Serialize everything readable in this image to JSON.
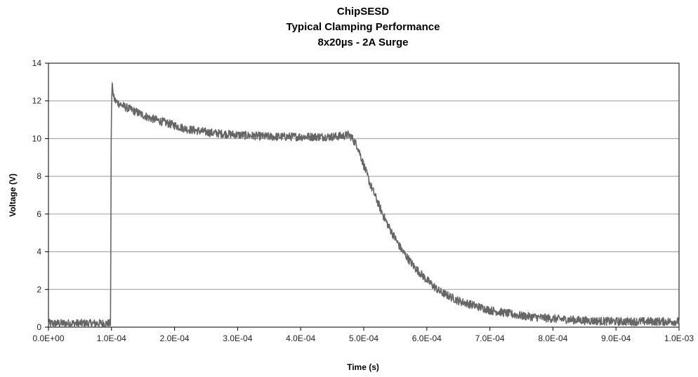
{
  "chart_data": {
    "type": "line",
    "title": [
      "ChipSESD",
      "Typical Clamping Performance",
      "8x20µs - 2A Surge"
    ],
    "xlabel": "Time (s)",
    "ylabel": "Voltage (V)",
    "xlim": [
      0,
      0.001
    ],
    "ylim": [
      0,
      14
    ],
    "x_ticks": [
      0,
      0.0001,
      0.0002,
      0.0003,
      0.0004,
      0.0005,
      0.0006,
      0.0007,
      0.0008,
      0.0009,
      0.001
    ],
    "x_tick_labels": [
      "0.0E+00",
      "1.0E-04",
      "2.0E-04",
      "3.0E-04",
      "4.0E-04",
      "5.0E-04",
      "6.0E-04",
      "7.0E-04",
      "8.0E-04",
      "9.0E-04",
      "1.0E-03"
    ],
    "y_ticks": [
      0,
      2,
      4,
      6,
      8,
      10,
      12,
      14
    ],
    "y_tick_labels": [
      "0",
      "2",
      "4",
      "6",
      "8",
      "10",
      "12",
      "14"
    ],
    "grid": "horizontal",
    "line_color": "#666666",
    "series": [
      {
        "x": [
          0,
          5e-05,
          9.85e-05,
          9.95e-05,
          0.0001,
          0.000101,
          0.000103,
          0.000106,
          0.00011,
          0.00012,
          0.00014,
          0.00016,
          0.00018,
          0.0002,
          0.00022,
          0.00024,
          0.00026,
          0.00028,
          0.0003,
          0.00035,
          0.0004,
          0.00045,
          0.00047,
          0.000475,
          0.00048,
          0.00049,
          0.0005,
          0.00051,
          0.00052,
          0.00053,
          0.00054,
          0.00055,
          0.00056,
          0.00058,
          0.0006,
          0.00062,
          0.00065,
          0.00068,
          0.0007,
          0.00075,
          0.0008,
          0.00085,
          0.0009,
          0.00095,
          0.001
        ],
        "y": [
          0.2,
          0.2,
          0.2,
          10.0,
          11.5,
          13.0,
          12.2,
          12.0,
          11.9,
          11.7,
          11.4,
          11.1,
          10.9,
          10.7,
          10.5,
          10.4,
          10.3,
          10.25,
          10.2,
          10.1,
          10.1,
          10.1,
          10.15,
          10.2,
          10.1,
          9.6,
          8.6,
          7.6,
          6.8,
          6.0,
          5.3,
          4.7,
          4.1,
          3.2,
          2.5,
          1.9,
          1.4,
          1.1,
          0.9,
          0.6,
          0.45,
          0.35,
          0.3,
          0.3,
          0.3
        ],
        "noise": 0.22
      }
    ]
  }
}
